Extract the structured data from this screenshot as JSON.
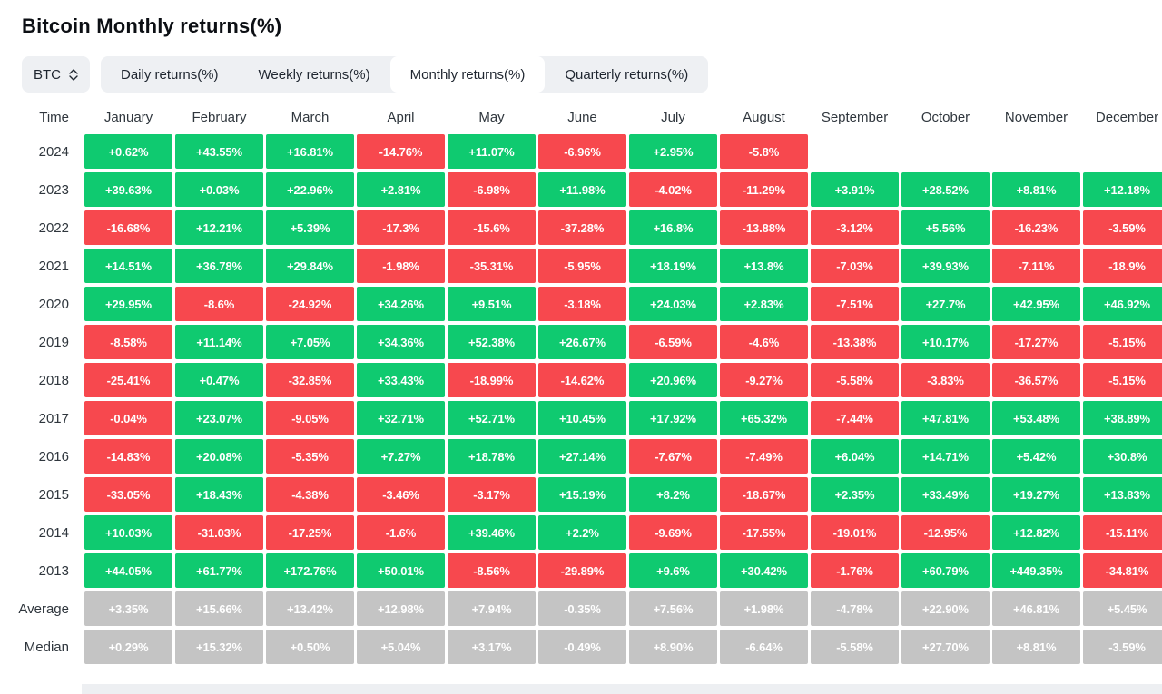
{
  "title": "Bitcoin Monthly returns(%)",
  "controls": {
    "symbol_select": {
      "value": "BTC"
    },
    "tabs": [
      {
        "label": "Daily returns(%)",
        "active": false
      },
      {
        "label": "Weekly returns(%)",
        "active": false
      },
      {
        "label": "Monthly returns(%)",
        "active": true
      },
      {
        "label": "Quarterly returns(%)",
        "active": false
      }
    ]
  },
  "colors": {
    "positive": "#0fca70",
    "negative": "#f7484e",
    "neutral": "#c4c4c4"
  },
  "chart_data": {
    "type": "heatmap",
    "title": "Bitcoin Monthly returns(%)",
    "legend_position": "none",
    "grid": false,
    "columns": [
      "Time",
      "January",
      "February",
      "March",
      "April",
      "May",
      "June",
      "July",
      "August",
      "September",
      "October",
      "November",
      "December"
    ],
    "rows": [
      {
        "label": "2024",
        "neutral": false,
        "values": [
          "+0.62%",
          "+43.55%",
          "+16.81%",
          "-14.76%",
          "+11.07%",
          "-6.96%",
          "+2.95%",
          "-5.8%",
          null,
          null,
          null,
          null
        ]
      },
      {
        "label": "2023",
        "neutral": false,
        "values": [
          "+39.63%",
          "+0.03%",
          "+22.96%",
          "+2.81%",
          "-6.98%",
          "+11.98%",
          "-4.02%",
          "-11.29%",
          "+3.91%",
          "+28.52%",
          "+8.81%",
          "+12.18%"
        ]
      },
      {
        "label": "2022",
        "neutral": false,
        "values": [
          "-16.68%",
          "+12.21%",
          "+5.39%",
          "-17.3%",
          "-15.6%",
          "-37.28%",
          "+16.8%",
          "-13.88%",
          "-3.12%",
          "+5.56%",
          "-16.23%",
          "-3.59%"
        ]
      },
      {
        "label": "2021",
        "neutral": false,
        "values": [
          "+14.51%",
          "+36.78%",
          "+29.84%",
          "-1.98%",
          "-35.31%",
          "-5.95%",
          "+18.19%",
          "+13.8%",
          "-7.03%",
          "+39.93%",
          "-7.11%",
          "-18.9%"
        ]
      },
      {
        "label": "2020",
        "neutral": false,
        "values": [
          "+29.95%",
          "-8.6%",
          "-24.92%",
          "+34.26%",
          "+9.51%",
          "-3.18%",
          "+24.03%",
          "+2.83%",
          "-7.51%",
          "+27.7%",
          "+42.95%",
          "+46.92%"
        ]
      },
      {
        "label": "2019",
        "neutral": false,
        "values": [
          "-8.58%",
          "+11.14%",
          "+7.05%",
          "+34.36%",
          "+52.38%",
          "+26.67%",
          "-6.59%",
          "-4.6%",
          "-13.38%",
          "+10.17%",
          "-17.27%",
          "-5.15%"
        ]
      },
      {
        "label": "2018",
        "neutral": false,
        "values": [
          "-25.41%",
          "+0.47%",
          "-32.85%",
          "+33.43%",
          "-18.99%",
          "-14.62%",
          "+20.96%",
          "-9.27%",
          "-5.58%",
          "-3.83%",
          "-36.57%",
          "-5.15%"
        ]
      },
      {
        "label": "2017",
        "neutral": false,
        "values": [
          "-0.04%",
          "+23.07%",
          "-9.05%",
          "+32.71%",
          "+52.71%",
          "+10.45%",
          "+17.92%",
          "+65.32%",
          "-7.44%",
          "+47.81%",
          "+53.48%",
          "+38.89%"
        ]
      },
      {
        "label": "2016",
        "neutral": false,
        "values": [
          "-14.83%",
          "+20.08%",
          "-5.35%",
          "+7.27%",
          "+18.78%",
          "+27.14%",
          "-7.67%",
          "-7.49%",
          "+6.04%",
          "+14.71%",
          "+5.42%",
          "+30.8%"
        ]
      },
      {
        "label": "2015",
        "neutral": false,
        "values": [
          "-33.05%",
          "+18.43%",
          "-4.38%",
          "-3.46%",
          "-3.17%",
          "+15.19%",
          "+8.2%",
          "-18.67%",
          "+2.35%",
          "+33.49%",
          "+19.27%",
          "+13.83%"
        ]
      },
      {
        "label": "2014",
        "neutral": false,
        "values": [
          "+10.03%",
          "-31.03%",
          "-17.25%",
          "-1.6%",
          "+39.46%",
          "+2.2%",
          "-9.69%",
          "-17.55%",
          "-19.01%",
          "-12.95%",
          "+12.82%",
          "-15.11%"
        ]
      },
      {
        "label": "2013",
        "neutral": false,
        "values": [
          "+44.05%",
          "+61.77%",
          "+172.76%",
          "+50.01%",
          "-8.56%",
          "-29.89%",
          "+9.6%",
          "+30.42%",
          "-1.76%",
          "+60.79%",
          "+449.35%",
          "-34.81%"
        ]
      },
      {
        "label": "Average",
        "neutral": true,
        "values": [
          "+3.35%",
          "+15.66%",
          "+13.42%",
          "+12.98%",
          "+7.94%",
          "-0.35%",
          "+7.56%",
          "+1.98%",
          "-4.78%",
          "+22.90%",
          "+46.81%",
          "+5.45%"
        ]
      },
      {
        "label": "Median",
        "neutral": true,
        "values": [
          "+0.29%",
          "+15.32%",
          "+0.50%",
          "+5.04%",
          "+3.17%",
          "-0.49%",
          "+8.90%",
          "-6.64%",
          "-5.58%",
          "+27.70%",
          "+8.81%",
          "-3.59%"
        ]
      }
    ]
  }
}
